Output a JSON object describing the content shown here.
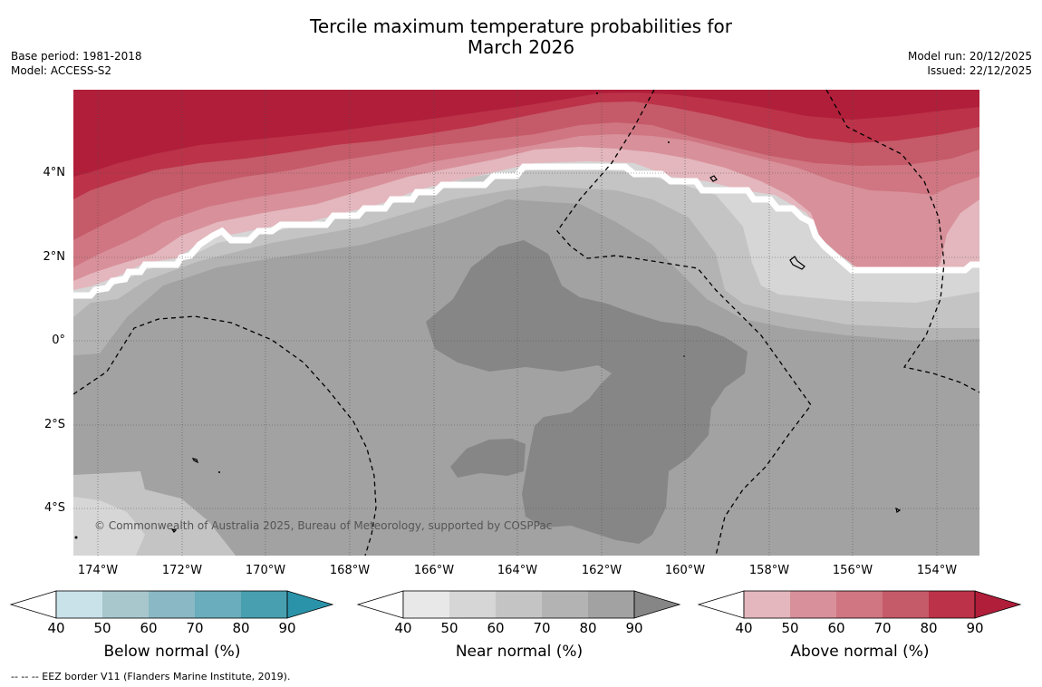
{
  "header": {
    "title_line1": "Tercile maximum temperature probabilities for",
    "title_line2": "March 2026",
    "base_period": "Base period: 1981-2018",
    "model": "Model: ACCESS-S2",
    "model_run": "Model run: 20/12/2025",
    "issued": "Issued: 22/12/2025"
  },
  "map": {
    "copyright": "© Commonwealth of Australia 2025, Bureau of Meteorology, supported by COSPPac",
    "lat_labels": [
      "4°N",
      "2°N",
      "0°",
      "2°S",
      "4°S"
    ],
    "lon_labels": [
      "174°W",
      "172°W",
      "170°W",
      "168°W",
      "166°W",
      "164°W",
      "162°W",
      "160°W",
      "158°W",
      "156°W",
      "154°W"
    ]
  },
  "colorbars": {
    "ticks": [
      "40",
      "50",
      "60",
      "70",
      "80",
      "90"
    ],
    "below": {
      "title": "Below normal (%)",
      "colors": [
        "#c9e1e8",
        "#a7c7cd",
        "#8ab8c4",
        "#6aadbc",
        "#479faf",
        "#2b93a9"
      ]
    },
    "near": {
      "title": "Near normal (%)",
      "colors": [
        "#e8e8e8",
        "#d6d6d6",
        "#c4c4c4",
        "#b3b3b3",
        "#a2a2a2",
        "#868686"
      ]
    },
    "above": {
      "title": "Above normal (%)",
      "colors": [
        "#e3b7bd",
        "#d8909a",
        "#cf7682",
        "#c55a68",
        "#bc3248",
        "#b01e3a"
      ]
    }
  },
  "footer": "-- -- -- EEZ border V11 (Flanders Marine Institute, 2019)."
}
